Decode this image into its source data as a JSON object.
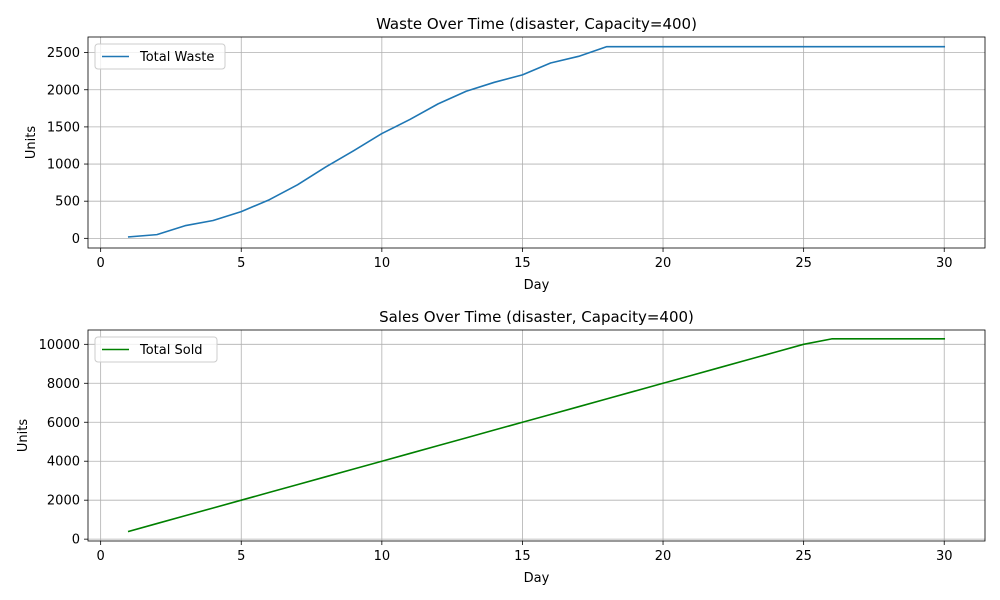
{
  "chart_data": [
    {
      "type": "line",
      "title": "Waste Over Time (disaster, Capacity=400)",
      "xlabel": "Day",
      "ylabel": "Units",
      "xlim": [
        -0.45,
        31.45
      ],
      "ylim": [
        -130,
        2710
      ],
      "xticks": [
        0,
        5,
        10,
        15,
        20,
        25,
        30
      ],
      "yticks": [
        0,
        500,
        1000,
        1500,
        2000,
        2500
      ],
      "grid": true,
      "legend_position": "upper left",
      "series": [
        {
          "name": "Total Waste",
          "color": "#1f77b4",
          "x": [
            1,
            2,
            3,
            4,
            5,
            6,
            7,
            8,
            9,
            10,
            11,
            12,
            13,
            14,
            15,
            16,
            17,
            18,
            19,
            20,
            21,
            22,
            23,
            24,
            25,
            26,
            27,
            28,
            29,
            30
          ],
          "y": [
            20,
            50,
            170,
            240,
            360,
            520,
            720,
            960,
            1180,
            1410,
            1600,
            1810,
            1980,
            2100,
            2200,
            2360,
            2450,
            2580,
            2580,
            2580,
            2580,
            2580,
            2580,
            2580,
            2580,
            2580,
            2580,
            2580,
            2580,
            2580
          ]
        }
      ]
    },
    {
      "type": "line",
      "title": "Sales Over Time (disaster, Capacity=400)",
      "xlabel": "Day",
      "ylabel": "Units",
      "xlim": [
        -0.45,
        31.45
      ],
      "ylim": [
        -95,
        10735
      ],
      "xticks": [
        0,
        5,
        10,
        15,
        20,
        25,
        30
      ],
      "yticks": [
        0,
        2000,
        4000,
        6000,
        8000,
        10000
      ],
      "grid": true,
      "legend_position": "upper left",
      "series": [
        {
          "name": "Total Sold",
          "color": "#008000",
          "x": [
            1,
            2,
            3,
            4,
            5,
            6,
            7,
            8,
            9,
            10,
            11,
            12,
            13,
            14,
            15,
            16,
            17,
            18,
            19,
            20,
            21,
            22,
            23,
            24,
            25,
            26,
            27,
            28,
            29,
            30
          ],
          "y": [
            400,
            800,
            1200,
            1600,
            2000,
            2400,
            2800,
            3200,
            3600,
            4000,
            4400,
            4800,
            5200,
            5600,
            6000,
            6400,
            6800,
            7200,
            7600,
            8000,
            8400,
            8800,
            9200,
            9600,
            10000,
            10280,
            10280,
            10280,
            10280,
            10280
          ]
        }
      ]
    }
  ]
}
